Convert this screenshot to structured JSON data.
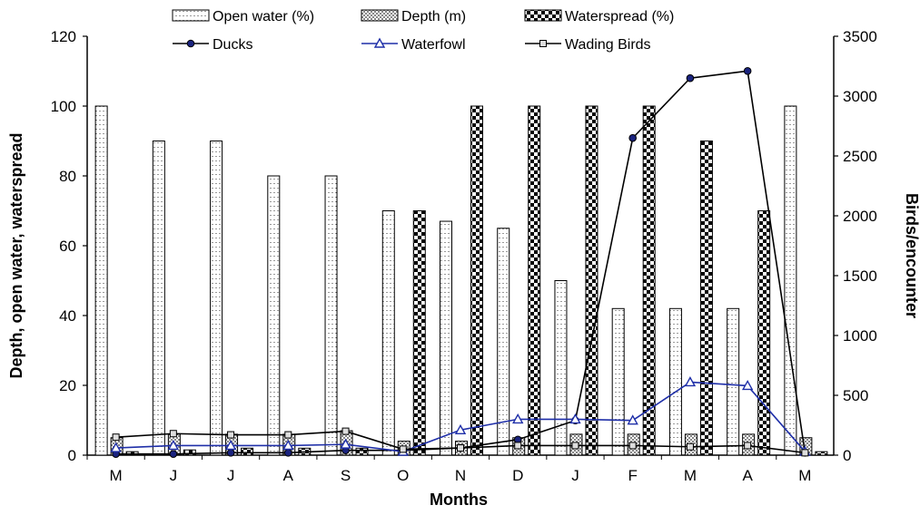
{
  "chart_data": {
    "type": "bar",
    "categories": [
      "M",
      "J",
      "J",
      "A",
      "S",
      "O",
      "N",
      "D",
      "J",
      "F",
      "M",
      "A",
      "M"
    ],
    "xlabel": "Months",
    "ylabel": "Depth, open water, waterspread",
    "y2label": "Birds/encounter",
    "ylim": [
      0,
      120
    ],
    "y2lim": [
      0,
      3500
    ],
    "y_ticks": [
      "0",
      "20",
      "40",
      "60",
      "80",
      "100",
      "120"
    ],
    "y2_ticks": [
      "0",
      "500",
      "1000",
      "1500",
      "2000",
      "2500",
      "3000",
      "3500"
    ],
    "grid": false,
    "legend_position": "top",
    "bar_series": [
      {
        "name": "Open water (%)",
        "axis": "left",
        "pattern": "dots",
        "values": [
          100,
          90,
          90,
          80,
          80,
          70,
          67,
          65,
          50,
          42,
          42,
          42,
          100
        ]
      },
      {
        "name": "Depth (m)",
        "axis": "left",
        "pattern": "hatch",
        "values": [
          5,
          6,
          6,
          6,
          7,
          4,
          4,
          5,
          6,
          6,
          6,
          6,
          5
        ]
      },
      {
        "name": "Waterspread (%)",
        "axis": "left",
        "pattern": "checker",
        "values": [
          1,
          1.5,
          2,
          2,
          2,
          70,
          100,
          100,
          100,
          100,
          90,
          70,
          1
        ]
      }
    ],
    "line_series": [
      {
        "name": "Ducks",
        "axis": "right",
        "marker": "circle",
        "color": "#000000",
        "values": [
          10,
          10,
          20,
          20,
          40,
          40,
          60,
          130,
          290,
          2650,
          3150,
          3210,
          20
        ]
      },
      {
        "name": "Waterfowl",
        "axis": "right",
        "marker": "triangle",
        "color": "#1f2fa8",
        "values": [
          60,
          80,
          80,
          80,
          90,
          30,
          210,
          300,
          300,
          290,
          610,
          580,
          30
        ]
      },
      {
        "name": "Wading Birds",
        "axis": "right",
        "marker": "square",
        "color": "#000000",
        "values": [
          150,
          180,
          170,
          170,
          200,
          50,
          60,
          80,
          80,
          80,
          70,
          80,
          20
        ]
      }
    ]
  }
}
